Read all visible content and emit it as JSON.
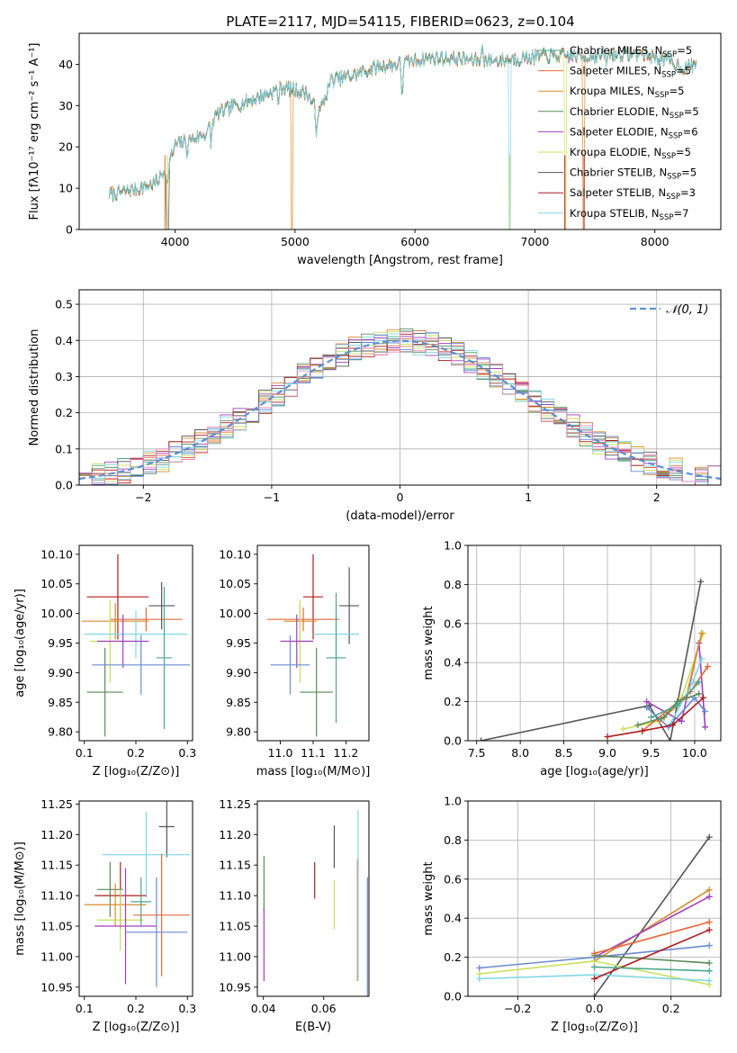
{
  "figure": {
    "title": "PLATE=2117, MJD=54115, FIBERID=0623, z=0.104"
  },
  "models": [
    {
      "name": "Chabrier MILES",
      "nssp": "5",
      "color": "#4aa78c"
    },
    {
      "name": "Salpeter MILES",
      "nssp": "5",
      "color": "#e8683a"
    },
    {
      "name": "Kroupa MILES",
      "nssp": "5",
      "color": "#d98a2b"
    },
    {
      "name": "Chabrier ELODIE",
      "nssp": "5",
      "color": "#5a8a5a"
    },
    {
      "name": "Salpeter ELODIE",
      "nssp": "6",
      "color": "#a23fbf"
    },
    {
      "name": "Kroupa ELODIE",
      "nssp": "5",
      "color": "#c9df5a"
    },
    {
      "name": "Chabrier STELIB",
      "nssp": "5",
      "color": "#555555"
    },
    {
      "name": "Salpeter STELIB",
      "nssp": "3",
      "color": "#b01c1c"
    },
    {
      "name": "Kroupa STELIB",
      "nssp": "7",
      "color": "#7fd6e6"
    }
  ],
  "extra_colors": {
    "blue": "#6a8ad4",
    "pink": "#e88aba"
  },
  "chart_data": [
    {
      "id": "spectrum",
      "type": "line",
      "title": "PLATE=2117, MJD=54115, FIBERID=0623, z=0.104",
      "xlabel": "wavelength [Angstrom, rest frame]",
      "ylabel": "Flux [fλ10⁻¹⁷ erg cm⁻² s⁻¹ A⁻¹]",
      "xlim": [
        3200,
        8550
      ],
      "ylim": [
        0,
        47.5
      ],
      "xticks": [
        4000,
        5000,
        6000,
        7000,
        8000
      ],
      "yticks": [
        0,
        10,
        20,
        30,
        40
      ],
      "grid": false,
      "legend": "right",
      "anchors": [
        [
          3450,
          8.5
        ],
        [
          3550,
          9
        ],
        [
          3700,
          10
        ],
        [
          3850,
          11.5
        ],
        [
          3950,
          16
        ],
        [
          4000,
          20.5
        ],
        [
          4150,
          22
        ],
        [
          4250,
          23
        ],
        [
          4350,
          28
        ],
        [
          4500,
          30
        ],
        [
          4700,
          32
        ],
        [
          4900,
          34.5
        ],
        [
          5100,
          33
        ],
        [
          5200,
          28
        ],
        [
          5300,
          36
        ],
        [
          5500,
          37.5
        ],
        [
          5700,
          39.5
        ],
        [
          5850,
          40
        ],
        [
          5950,
          40.5
        ],
        [
          6100,
          41.5
        ],
        [
          6300,
          41.5
        ],
        [
          6500,
          41
        ],
        [
          6700,
          41
        ],
        [
          6900,
          41.5
        ],
        [
          7100,
          42
        ],
        [
          7300,
          42
        ],
        [
          7500,
          42
        ],
        [
          7700,
          42.5
        ],
        [
          7900,
          42.5
        ],
        [
          8100,
          41
        ],
        [
          8250,
          39
        ],
        [
          8350,
          40
        ]
      ],
      "absorption_features": [
        [
          3934,
          -6
        ],
        [
          4102,
          -3
        ],
        [
          4300,
          -5
        ],
        [
          4861,
          -3
        ],
        [
          5175,
          -6
        ],
        [
          5893,
          -8
        ],
        [
          6563,
          4
        ],
        [
          7600,
          -2
        ]
      ],
      "dropouts": [
        [
          3930,
          3950
        ],
        [
          4970,
          4980
        ],
        [
          6785,
          6800
        ],
        [
          7250,
          7260
        ],
        [
          7400,
          7415
        ]
      ]
    },
    {
      "id": "residuals",
      "type": "histogram",
      "xlabel": "(data-model)/error",
      "ylabel": "Normed distribution",
      "xlim": [
        -2.5,
        2.5
      ],
      "ylim": [
        0,
        0.54
      ],
      "xticks": [
        -2,
        -1,
        0,
        1,
        2
      ],
      "yticks": [
        0.0,
        0.1,
        0.2,
        0.3,
        0.4,
        0.5
      ],
      "bin_width": 0.1,
      "grid": true,
      "legend": "top-right",
      "reference_curve": {
        "label": "𝒩(0, 1)",
        "mean": 0,
        "sigma": 1,
        "color": "#5b8fd6"
      }
    },
    {
      "id": "age-vs-Z",
      "type": "errorbar",
      "xlabel": "Z [log₁₀(Z/Z⊙)]",
      "ylabel": "age  [log₁₀(age/yr)]",
      "xlim": [
        0.09,
        0.31
      ],
      "ylim": [
        9.785,
        10.115
      ],
      "xticks": [
        0.1,
        0.2,
        0.3
      ],
      "yticks": [
        9.8,
        9.85,
        9.9,
        9.95,
        10.0,
        10.05,
        10.1
      ],
      "grid": false,
      "points": [
        {
          "series": 8,
          "x": 0.165,
          "y": 10.028,
          "xerr": 0.06,
          "yerr": 0.072
        },
        {
          "series": 3,
          "x": 0.16,
          "y": 9.987,
          "xerr": 0.065,
          "yerr": 0.03
        },
        {
          "series": 2,
          "x": 0.22,
          "y": 9.99,
          "xerr": 0.07,
          "yerr": 0.02
        },
        {
          "series": 7,
          "x": 0.25,
          "y": 10.013,
          "xerr": 0.025,
          "yerr": 0.04
        },
        {
          "series": 9,
          "x": 0.2,
          "y": 9.965,
          "xerr": 0.1,
          "yerr": 0.04
        },
        {
          "series": 6,
          "x": 0.15,
          "y": 9.953,
          "xerr": 0.04,
          "yerr": 0.07
        },
        {
          "series": 5,
          "x": 0.175,
          "y": 9.953,
          "xerr": 0.05,
          "yerr": 0.045
        },
        {
          "series": 1,
          "x": 0.255,
          "y": 9.925,
          "xerr": 0.015,
          "yerr": 0.12
        },
        {
          "series": 4,
          "x": 0.14,
          "y": 9.867,
          "xerr": 0.035,
          "yerr": 0.075
        },
        {
          "series": 10,
          "x": 0.21,
          "y": 9.913,
          "xerr": 0.095,
          "yerr": 0.05
        }
      ]
    },
    {
      "id": "age-vs-mass",
      "type": "errorbar",
      "xlabel": "mass [log₁₀(M/M⊙)]",
      "ylabel": "",
      "xlim": [
        10.93,
        11.27
      ],
      "ylim": [
        9.785,
        10.115
      ],
      "xticks": [
        11.0,
        11.1,
        11.2
      ],
      "yticks": [
        9.8,
        9.85,
        9.9,
        9.95,
        10.0,
        10.05,
        10.1
      ],
      "grid": false,
      "points": [
        {
          "series": 8,
          "x": 11.1,
          "y": 10.028,
          "xerr": 0.03,
          "yerr": 0.072
        },
        {
          "series": 3,
          "x": 11.06,
          "y": 9.987,
          "xerr": 0.05,
          "yerr": 0.03
        },
        {
          "series": 2,
          "x": 11.07,
          "y": 9.99,
          "xerr": 0.11,
          "yerr": 0.02
        },
        {
          "series": 7,
          "x": 11.21,
          "y": 10.013,
          "xerr": 0.03,
          "yerr": 0.065
        },
        {
          "series": 9,
          "x": 11.17,
          "y": 9.965,
          "xerr": 0.07,
          "yerr": 0.04
        },
        {
          "series": 6,
          "x": 11.06,
          "y": 9.953,
          "xerr": 0.04,
          "yerr": 0.07
        },
        {
          "series": 5,
          "x": 11.05,
          "y": 9.953,
          "xerr": 0.05,
          "yerr": 0.045
        },
        {
          "series": 1,
          "x": 11.17,
          "y": 9.925,
          "xerr": 0.03,
          "yerr": 0.11
        },
        {
          "series": 4,
          "x": 11.11,
          "y": 9.867,
          "xerr": 0.05,
          "yerr": 0.075
        },
        {
          "series": 10,
          "x": 11.03,
          "y": 9.913,
          "xerr": 0.06,
          "yerr": 0.05
        }
      ]
    },
    {
      "id": "weight-vs-age",
      "type": "line",
      "xlabel": "age  [log₁₀(age/yr)]",
      "ylabel": "mass weight",
      "xlim": [
        7.4,
        10.3
      ],
      "ylim": [
        0,
        1.0
      ],
      "xticks": [
        7.5,
        8.0,
        8.5,
        9.0,
        9.5,
        10.0
      ],
      "yticks": [
        0.0,
        0.2,
        0.4,
        0.6,
        0.8,
        1.0
      ],
      "grid": true,
      "series": [
        {
          "series": 7,
          "x": [
            7.55,
            9.48,
            9.72,
            10.07
          ],
          "y": [
            0.0,
            0.18,
            0.0,
            0.815
          ]
        },
        {
          "series": 6,
          "x": [
            9.18,
            9.6,
            9.85,
            10.1
          ],
          "y": [
            0.06,
            0.1,
            0.22,
            0.55
          ]
        },
        {
          "series": 5,
          "x": [
            9.45,
            9.85,
            10.05,
            10.12
          ],
          "y": [
            0.2,
            0.1,
            0.5,
            0.07
          ]
        },
        {
          "series": 3,
          "x": [
            9.6,
            9.9,
            10.08
          ],
          "y": [
            0.1,
            0.22,
            0.55
          ]
        },
        {
          "series": 2,
          "x": [
            9.4,
            9.95,
            10.15
          ],
          "y": [
            0.05,
            0.25,
            0.38
          ]
        },
        {
          "series": 9,
          "x": [
            9.7,
            9.98,
            10.08
          ],
          "y": [
            0.07,
            0.3,
            0.42
          ]
        },
        {
          "series": 10,
          "x": [
            9.45,
            9.7,
            10.0,
            10.12
          ],
          "y": [
            0.17,
            0.07,
            0.22,
            0.15
          ]
        },
        {
          "series": 8,
          "x": [
            9.0,
            9.4,
            9.75,
            10.1
          ],
          "y": [
            0.02,
            0.05,
            0.08,
            0.22
          ]
        },
        {
          "series": 4,
          "x": [
            9.35,
            9.65,
            9.8,
            10.05
          ],
          "y": [
            0.08,
            0.12,
            0.2,
            0.24
          ]
        },
        {
          "series": 1,
          "x": [
            9.5,
            9.8,
            10.05
          ],
          "y": [
            0.12,
            0.18,
            0.3
          ]
        }
      ]
    },
    {
      "id": "mass-vs-Z",
      "type": "errorbar",
      "xlabel": "Z [log₁₀(Z/Z⊙)]",
      "ylabel": "mass [log₁₀(M/M⊙)]",
      "xlim": [
        0.09,
        0.31
      ],
      "ylim": [
        10.935,
        11.255
      ],
      "xticks": [
        0.1,
        0.2,
        0.3
      ],
      "yticks": [
        10.95,
        11.0,
        11.05,
        11.1,
        11.15,
        11.2,
        11.25
      ],
      "grid": false,
      "points": [
        {
          "series": 7,
          "x": 0.26,
          "y": 11.213,
          "xerr": 0.015,
          "yerr": 0.05
        },
        {
          "series": 9,
          "x": 0.22,
          "y": 11.167,
          "xerr": 0.085,
          "yerr": 0.07
        },
        {
          "series": 8,
          "x": 0.17,
          "y": 11.1,
          "xerr": 0.05,
          "yerr": 0.055
        },
        {
          "series": 4,
          "x": 0.15,
          "y": 11.11,
          "xerr": 0.025,
          "yerr": 0.045
        },
        {
          "series": 3,
          "x": 0.16,
          "y": 11.085,
          "xerr": 0.06,
          "yerr": 0.035
        },
        {
          "series": 2,
          "x": 0.25,
          "y": 11.068,
          "xerr": 0.055,
          "yerr": 0.1
        },
        {
          "series": 6,
          "x": 0.17,
          "y": 11.06,
          "xerr": 0.045,
          "yerr": 0.05
        },
        {
          "series": 5,
          "x": 0.18,
          "y": 11.05,
          "xerr": 0.06,
          "yerr": 0.095
        },
        {
          "series": 10,
          "x": 0.24,
          "y": 11.04,
          "xerr": 0.06,
          "yerr": 0.09
        },
        {
          "series": 1,
          "x": 0.21,
          "y": 11.09,
          "xerr": 0.02,
          "yerr": 0.04
        }
      ]
    },
    {
      "id": "mass-vs-EBV",
      "type": "errorbar",
      "xlabel": "E(B-V)",
      "ylabel": "",
      "xlim": [
        0.038,
        0.075
      ],
      "ylim": [
        10.935,
        11.255
      ],
      "xticks": [
        0.04,
        0.06
      ],
      "yticks": [
        10.95,
        11.0,
        11.05,
        11.1,
        11.15,
        11.2,
        11.25
      ],
      "grid": false,
      "points": [
        {
          "series": 4,
          "x": 0.0402,
          "y": 11.12,
          "xerr": 0,
          "yerr": 0.045
        },
        {
          "series": 5,
          "x": 0.0402,
          "y": 11.02,
          "xerr": 0,
          "yerr": 0.06
        },
        {
          "series": 8,
          "x": 0.057,
          "y": 11.125,
          "xerr": 0,
          "yerr": 0.03
        },
        {
          "series": 7,
          "x": 0.0635,
          "y": 11.18,
          "xerr": 0,
          "yerr": 0.035
        },
        {
          "series": 6,
          "x": 0.0635,
          "y": 11.085,
          "xerr": 0,
          "yerr": 0.04
        },
        {
          "series": 2,
          "x": 0.0712,
          "y": 11.06,
          "xerr": 0,
          "yerr": 0.1
        },
        {
          "series": 9,
          "x": 0.0714,
          "y": 11.1,
          "xerr": 0,
          "yerr": 0.14
        },
        {
          "series": 10,
          "x": 0.0745,
          "y": 11.03,
          "xerr": 0,
          "yerr": 0.1
        }
      ]
    },
    {
      "id": "weight-vs-Z",
      "type": "line",
      "xlabel": "Z [log₁₀(Z/Z⊙)]",
      "ylabel": "mass weight",
      "xlim": [
        -0.33,
        0.33
      ],
      "ylim": [
        0,
        1.0
      ],
      "xticks": [
        -0.2,
        0.0,
        0.2
      ],
      "yticks": [
        0.0,
        0.2,
        0.4,
        0.6,
        0.8,
        1.0
      ],
      "grid": true,
      "series": [
        {
          "series": 7,
          "x": [
            0.0,
            0.3
          ],
          "y": [
            0.0,
            0.815
          ]
        },
        {
          "series": 3,
          "x": [
            0.0,
            0.3
          ],
          "y": [
            0.18,
            0.545
          ]
        },
        {
          "series": 5,
          "x": [
            0.0,
            0.3
          ],
          "y": [
            0.2,
            0.51
          ]
        },
        {
          "series": 6,
          "x": [
            -0.3,
            0.0,
            0.3
          ],
          "y": [
            0.115,
            0.18,
            0.06
          ]
        },
        {
          "series": 10,
          "x": [
            -0.3,
            0.0,
            0.3
          ],
          "y": [
            0.145,
            0.2,
            0.26
          ]
        },
        {
          "series": 4,
          "x": [
            0.0,
            0.3
          ],
          "y": [
            0.21,
            0.17
          ]
        },
        {
          "series": 9,
          "x": [
            -0.3,
            0.0,
            0.3
          ],
          "y": [
            0.09,
            0.11,
            0.08
          ]
        },
        {
          "series": 8,
          "x": [
            0.0,
            0.3
          ],
          "y": [
            0.09,
            0.34
          ]
        },
        {
          "series": 2,
          "x": [
            0.0,
            0.3
          ],
          "y": [
            0.22,
            0.38
          ]
        },
        {
          "series": 1,
          "x": [
            0.0,
            0.3
          ],
          "y": [
            0.15,
            0.13
          ]
        }
      ]
    }
  ]
}
